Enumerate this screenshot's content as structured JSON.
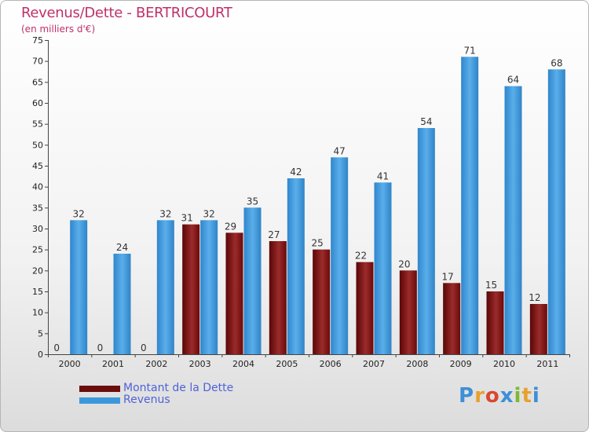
{
  "title": "Revenus/Dette - BERTRICOURT",
  "subtitle": "(en milliers d'€)",
  "logo_text": "Proxiti",
  "chart_data": {
    "type": "bar",
    "categories": [
      "2000",
      "2001",
      "2002",
      "2003",
      "2004",
      "2005",
      "2006",
      "2007",
      "2008",
      "2009",
      "2010",
      "2011"
    ],
    "series": [
      {
        "name": "Montant de la Dette",
        "color": "#7a1015",
        "values": [
          0,
          0,
          0,
          31,
          29,
          27,
          25,
          22,
          20,
          17,
          15,
          12
        ]
      },
      {
        "name": "Revenus",
        "color": "#3d98db",
        "values": [
          32,
          24,
          32,
          32,
          35,
          42,
          47,
          41,
          54,
          71,
          64,
          68
        ]
      }
    ],
    "ylim": [
      0,
      75
    ],
    "yticks": [
      0,
      5,
      10,
      15,
      20,
      25,
      30,
      35,
      40,
      45,
      50,
      55,
      60,
      65,
      70,
      75
    ],
    "grid": false
  },
  "legend": [
    {
      "label": "Montant de la Dette",
      "color": "#6b0d0d"
    },
    {
      "label": "Revenus",
      "color": "#3d98db"
    }
  ]
}
